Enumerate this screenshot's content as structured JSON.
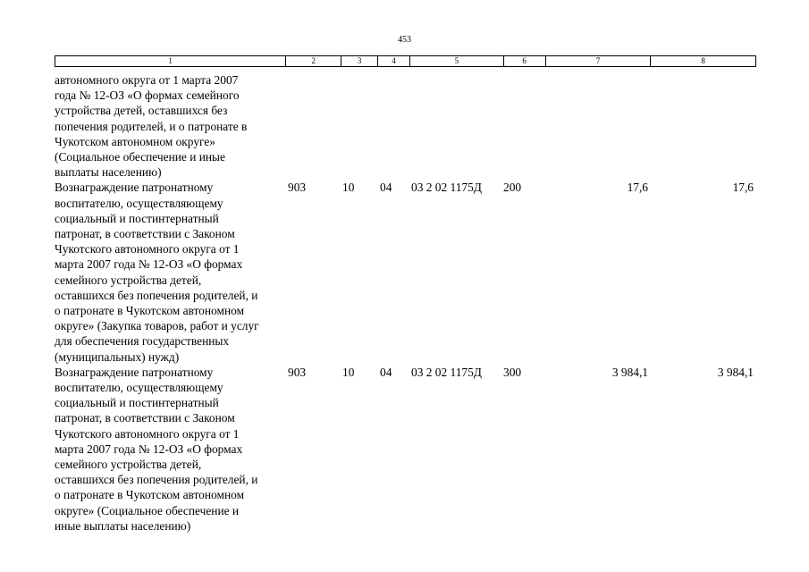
{
  "page_number": "453",
  "header": [
    "1",
    "2",
    "3",
    "4",
    "5",
    "6",
    "7",
    "8"
  ],
  "rows": [
    {
      "description": "автономного округа от 1 марта 2007\nгода № 12-ОЗ «О формах семейного\nустройства детей, оставшихся без\nпопечения родителей, и о патронате в\nЧукотском автономном округе»\n(Социальное обеспечение и иные\nвыплаты населению)",
      "admin": "",
      "section": "",
      "subsection": "",
      "code": "",
      "kind": "",
      "year1": "",
      "year2": ""
    },
    {
      "description": "Вознаграждение патронатному\nвоспитателю, осуществляющему\nсоциальный и постинтернатный\nпатронат, в соответствии с Законом\nЧукотского автономного округа от 1\nмарта 2007 года № 12-ОЗ «О формах\nсемейного устройства детей,\nоставшихся без попечения родителей, и\nо патронате в Чукотском автономном\nокруге» (Закупка товаров, работ и услуг\nдля обеспечения государственных\n(муниципальных) нужд)",
      "admin": "903",
      "section": "10",
      "subsection": "04",
      "code": "03 2 02 1175Д",
      "kind": "200",
      "year1": "17,6",
      "year2": "17,6"
    },
    {
      "description": "Вознаграждение патронатному\nвоспитателю, осуществляющему\nсоциальный и постинтернатный\nпатронат, в соответствии с Законом\nЧукотского автономного округа от 1\nмарта 2007 года № 12-ОЗ «О формах\nсемейного устройства детей,\nоставшихся без попечения родителей, и\nо патронате в Чукотском автономном\nокруге» (Социальное обеспечение и\nиные выплаты населению)",
      "admin": "903",
      "section": "10",
      "subsection": "04",
      "code": "03 2 02 1175Д",
      "kind": "300",
      "year1": "3 984,1",
      "year2": "3 984,1"
    }
  ]
}
